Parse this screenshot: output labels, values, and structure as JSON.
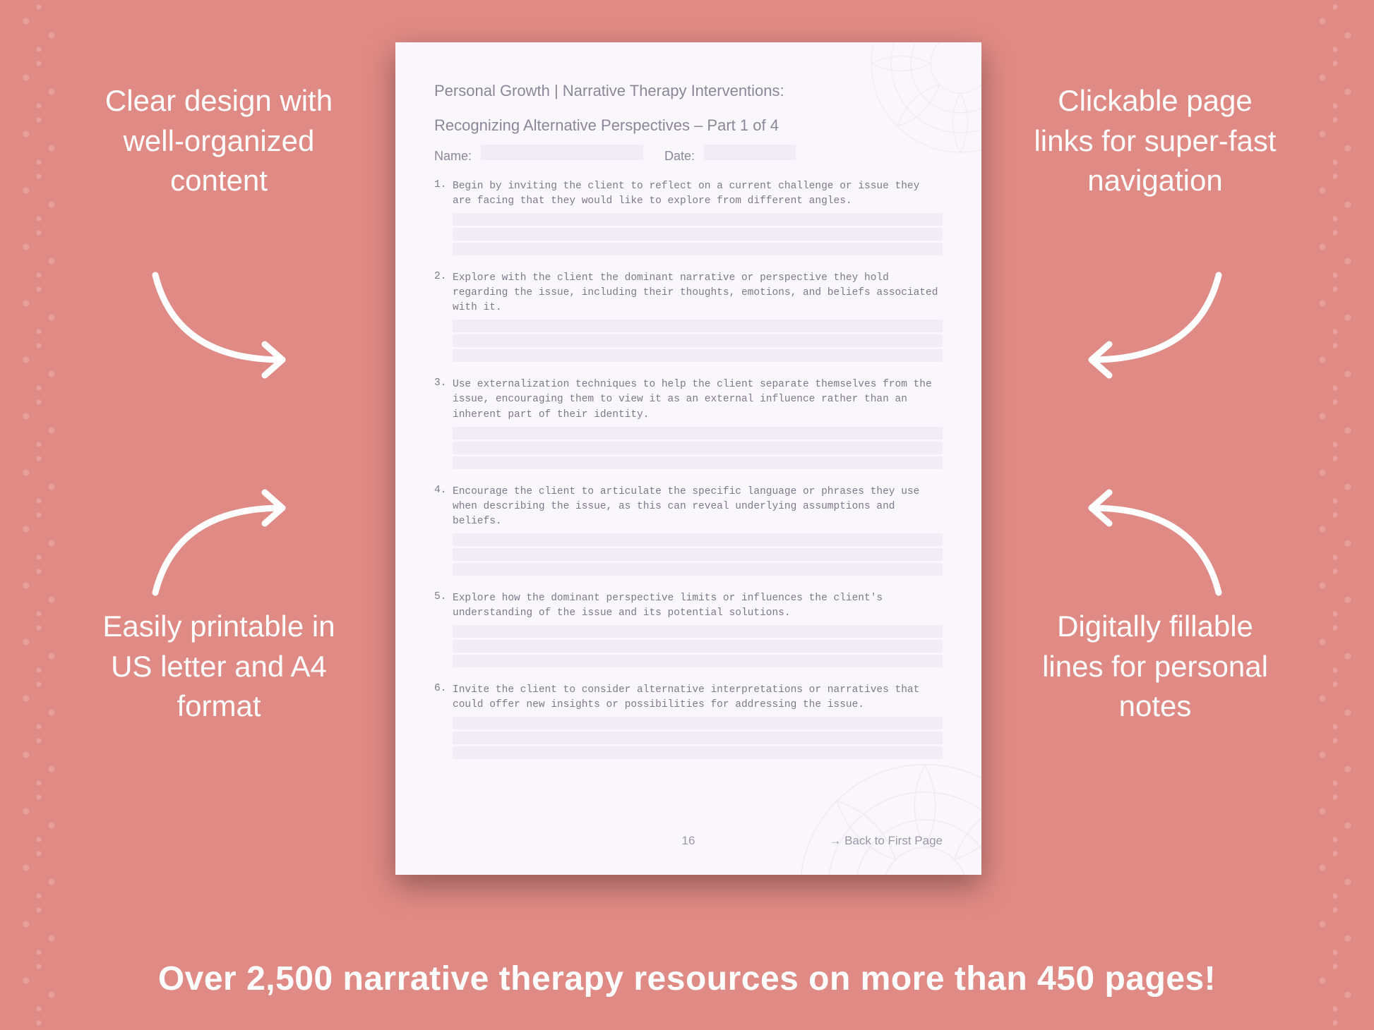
{
  "background_color": "#e08a85",
  "callouts": {
    "top_left": "Clear design with well-organized content",
    "top_right": "Clickable page links for super-fast navigation",
    "bottom_left": "Easily printable in US letter and A4 format",
    "bottom_right": "Digitally fillable lines for personal notes"
  },
  "callout_style": {
    "color": "#ffffff",
    "font_size_pt": 32,
    "font_weight": 400
  },
  "arrow_style": {
    "stroke": "#ffffff",
    "stroke_width": 9,
    "head_size": 28
  },
  "tagline": "Over 2,500 narrative therapy resources on more than 450 pages!",
  "tagline_style": {
    "color": "#ffffff",
    "font_size_pt": 36,
    "font_weight": 700
  },
  "document": {
    "background_color": "#faf7fc",
    "accent_fill": "#f1ecf5",
    "text_color": "#8a8798",
    "mono_text_color": "#7c7a8a",
    "header_line1": "Personal Growth | Narrative Therapy Interventions:",
    "header_line2": "Recognizing Alternative Perspectives – Part 1 of 4",
    "name_label": "Name:",
    "date_label": "Date:",
    "questions": [
      "Begin by inviting the client to reflect on a current challenge or issue they are facing that they would like to explore from different angles.",
      "Explore with the client the dominant narrative or perspective they hold regarding the issue, including their thoughts, emotions, and beliefs associated with it.",
      "Use externalization techniques to help the client separate themselves from the issue, encouraging them to view it as an external influence rather than an inherent part of their identity.",
      "Encourage the client to articulate the specific language or phrases they use when describing the issue, as this can reveal underlying assumptions and beliefs.",
      "Explore how the dominant perspective limits or influences the client's understanding of the issue and its potential solutions.",
      "Invite the client to consider alternative interpretations or narratives that could offer new insights or possibilities for addressing the issue."
    ],
    "fill_lines_per_question": 3,
    "page_number": "16",
    "back_link_label": "→ Back to First Page"
  }
}
